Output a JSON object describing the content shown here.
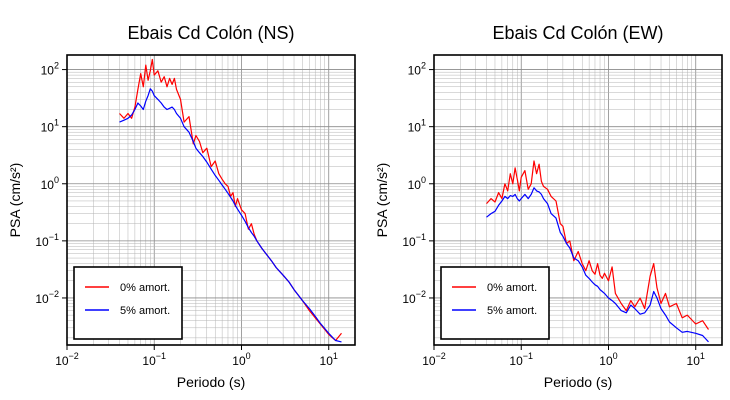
{
  "chart_data": [
    {
      "type": "line",
      "title": "Ebais Cd Colón (NS)",
      "xlabel": "Periodo (s)",
      "ylabel": "PSA (cm/s²)",
      "xscale": "log",
      "yscale": "log",
      "xlim": [
        0.01,
        20
      ],
      "ylim": [
        0.0015,
        180
      ],
      "grid": true,
      "legend_position": "bottom-left",
      "xticks": [
        {
          "base": "10",
          "exp": "−2",
          "value": 0.01
        },
        {
          "base": "10",
          "exp": "−1",
          "value": 0.1
        },
        {
          "base": "10",
          "exp": "0",
          "value": 1
        },
        {
          "base": "10",
          "exp": "1",
          "value": 10
        }
      ],
      "yticks": [
        {
          "base": "10",
          "exp": "−2",
          "value": 0.01
        },
        {
          "base": "10",
          "exp": "−1",
          "value": 0.1
        },
        {
          "base": "10",
          "exp": "0",
          "value": 1
        },
        {
          "base": "10",
          "exp": "1",
          "value": 10
        },
        {
          "base": "10",
          "exp": "2",
          "value": 100
        }
      ],
      "series": [
        {
          "name": "0% amort.",
          "color": "#ff0000",
          "x": [
            0.04,
            0.045,
            0.05,
            0.055,
            0.06,
            0.065,
            0.07,
            0.075,
            0.08,
            0.085,
            0.09,
            0.095,
            0.1,
            0.11,
            0.12,
            0.13,
            0.14,
            0.15,
            0.16,
            0.17,
            0.18,
            0.2,
            0.22,
            0.25,
            0.28,
            0.3,
            0.33,
            0.36,
            0.4,
            0.45,
            0.5,
            0.55,
            0.6,
            0.65,
            0.7,
            0.75,
            0.8,
            0.85,
            0.9,
            1.0,
            1.1,
            1.2,
            1.3,
            1.4,
            1.5,
            1.7,
            1.9,
            2.2,
            2.5,
            3.0,
            3.5,
            4.0,
            5.0,
            6.0,
            7.0,
            8.0,
            10.0,
            12.0,
            14.0
          ],
          "y": [
            17,
            14,
            17,
            14,
            22,
            45,
            85,
            50,
            120,
            65,
            95,
            150,
            80,
            95,
            60,
            75,
            50,
            70,
            55,
            70,
            45,
            30,
            12,
            15,
            5,
            7,
            5.5,
            3.5,
            4.2,
            2.0,
            2.5,
            1.5,
            1.2,
            1.0,
            0.9,
            0.6,
            0.7,
            0.4,
            0.55,
            0.35,
            0.3,
            0.16,
            0.2,
            0.13,
            0.1,
            0.075,
            0.06,
            0.045,
            0.034,
            0.025,
            0.019,
            0.014,
            0.009,
            0.006,
            0.0045,
            0.0035,
            0.0023,
            0.0018,
            0.0024
          ]
        },
        {
          "name": "5% amort.",
          "color": "#0000ff",
          "x": [
            0.04,
            0.045,
            0.05,
            0.055,
            0.06,
            0.065,
            0.07,
            0.075,
            0.08,
            0.085,
            0.09,
            0.095,
            0.1,
            0.11,
            0.12,
            0.13,
            0.14,
            0.15,
            0.16,
            0.17,
            0.18,
            0.2,
            0.22,
            0.25,
            0.28,
            0.3,
            0.33,
            0.36,
            0.4,
            0.45,
            0.5,
            0.55,
            0.6,
            0.65,
            0.7,
            0.75,
            0.8,
            0.85,
            0.9,
            1.0,
            1.1,
            1.2,
            1.3,
            1.4,
            1.5,
            1.7,
            1.9,
            2.2,
            2.5,
            3.0,
            3.5,
            4.0,
            5.0,
            6.0,
            7.0,
            8.0,
            10.0,
            12.0,
            14.0
          ],
          "y": [
            12,
            13,
            14,
            16,
            20,
            26,
            23,
            20,
            28,
            35,
            46,
            42,
            35,
            30,
            26,
            22,
            20,
            21,
            22,
            20,
            17,
            14,
            10,
            8,
            5.5,
            4.2,
            3.5,
            3.0,
            2.4,
            1.8,
            1.4,
            1.15,
            0.95,
            0.8,
            0.68,
            0.58,
            0.5,
            0.42,
            0.36,
            0.28,
            0.22,
            0.17,
            0.14,
            0.12,
            0.1,
            0.075,
            0.06,
            0.045,
            0.034,
            0.025,
            0.019,
            0.014,
            0.009,
            0.0065,
            0.0048,
            0.0036,
            0.0024,
            0.0018,
            0.0017
          ]
        }
      ]
    },
    {
      "type": "line",
      "title": "Ebais Cd Colón (EW)",
      "xlabel": "Periodo (s)",
      "ylabel": "PSA (cm/s²)",
      "xscale": "log",
      "yscale": "log",
      "xlim": [
        0.01,
        20
      ],
      "ylim": [
        0.0015,
        180
      ],
      "grid": true,
      "legend_position": "bottom-left",
      "xticks": [
        {
          "base": "10",
          "exp": "−2",
          "value": 0.01
        },
        {
          "base": "10",
          "exp": "−1",
          "value": 0.1
        },
        {
          "base": "10",
          "exp": "0",
          "value": 1
        },
        {
          "base": "10",
          "exp": "1",
          "value": 10
        }
      ],
      "yticks": [
        {
          "base": "10",
          "exp": "−2",
          "value": 0.01
        },
        {
          "base": "10",
          "exp": "−1",
          "value": 0.1
        },
        {
          "base": "10",
          "exp": "0",
          "value": 1
        },
        {
          "base": "10",
          "exp": "1",
          "value": 10
        },
        {
          "base": "10",
          "exp": "2",
          "value": 100
        }
      ],
      "series": [
        {
          "name": "0% amort.",
          "color": "#ff0000",
          "x": [
            0.04,
            0.045,
            0.05,
            0.055,
            0.06,
            0.065,
            0.07,
            0.075,
            0.08,
            0.085,
            0.09,
            0.095,
            0.1,
            0.11,
            0.12,
            0.13,
            0.14,
            0.15,
            0.16,
            0.17,
            0.18,
            0.2,
            0.22,
            0.25,
            0.28,
            0.3,
            0.33,
            0.36,
            0.4,
            0.45,
            0.5,
            0.55,
            0.6,
            0.65,
            0.7,
            0.75,
            0.8,
            0.85,
            0.9,
            1.0,
            1.1,
            1.2,
            1.4,
            1.6,
            1.8,
            2.0,
            2.3,
            2.6,
            3.0,
            3.3,
            3.6,
            4.0,
            4.5,
            5.0,
            6.0,
            7.0,
            8.0,
            10.0,
            12.0,
            14.0
          ],
          "y": [
            0.45,
            0.55,
            0.48,
            0.7,
            0.55,
            1.0,
            0.75,
            1.5,
            1.0,
            1.9,
            1.2,
            0.75,
            1.3,
            1.7,
            0.8,
            1.0,
            2.5,
            1.5,
            2.2,
            1.1,
            0.9,
            0.8,
            0.6,
            0.5,
            0.2,
            0.18,
            0.09,
            0.1,
            0.045,
            0.065,
            0.04,
            0.03,
            0.045,
            0.03,
            0.026,
            0.04,
            0.025,
            0.022,
            0.027,
            0.02,
            0.035,
            0.012,
            0.008,
            0.006,
            0.009,
            0.007,
            0.01,
            0.0065,
            0.024,
            0.04,
            0.015,
            0.008,
            0.012,
            0.007,
            0.008,
            0.0045,
            0.005,
            0.0035,
            0.004,
            0.0028
          ]
        },
        {
          "name": "5% amort.",
          "color": "#0000ff",
          "x": [
            0.04,
            0.045,
            0.05,
            0.055,
            0.06,
            0.065,
            0.07,
            0.075,
            0.08,
            0.085,
            0.09,
            0.095,
            0.1,
            0.11,
            0.12,
            0.13,
            0.14,
            0.15,
            0.16,
            0.17,
            0.18,
            0.2,
            0.22,
            0.25,
            0.28,
            0.3,
            0.33,
            0.36,
            0.4,
            0.45,
            0.5,
            0.55,
            0.6,
            0.65,
            0.7,
            0.75,
            0.8,
            0.85,
            0.9,
            1.0,
            1.1,
            1.2,
            1.4,
            1.6,
            1.8,
            2.0,
            2.3,
            2.6,
            3.0,
            3.3,
            3.6,
            4.0,
            4.5,
            5.0,
            6.0,
            7.0,
            8.0,
            10.0,
            12.0,
            14.0
          ],
          "y": [
            0.26,
            0.3,
            0.33,
            0.42,
            0.5,
            0.6,
            0.55,
            0.62,
            0.6,
            0.65,
            0.55,
            0.5,
            0.55,
            0.65,
            0.55,
            0.65,
            0.85,
            0.75,
            0.72,
            0.65,
            0.55,
            0.45,
            0.3,
            0.25,
            0.14,
            0.12,
            0.09,
            0.075,
            0.05,
            0.045,
            0.035,
            0.025,
            0.022,
            0.019,
            0.017,
            0.016,
            0.014,
            0.013,
            0.012,
            0.01,
            0.009,
            0.008,
            0.006,
            0.0055,
            0.0075,
            0.0065,
            0.0052,
            0.0055,
            0.0075,
            0.013,
            0.01,
            0.0065,
            0.005,
            0.0038,
            0.003,
            0.0025,
            0.0026,
            0.0024,
            0.0022,
            0.0017
          ]
        }
      ]
    }
  ]
}
